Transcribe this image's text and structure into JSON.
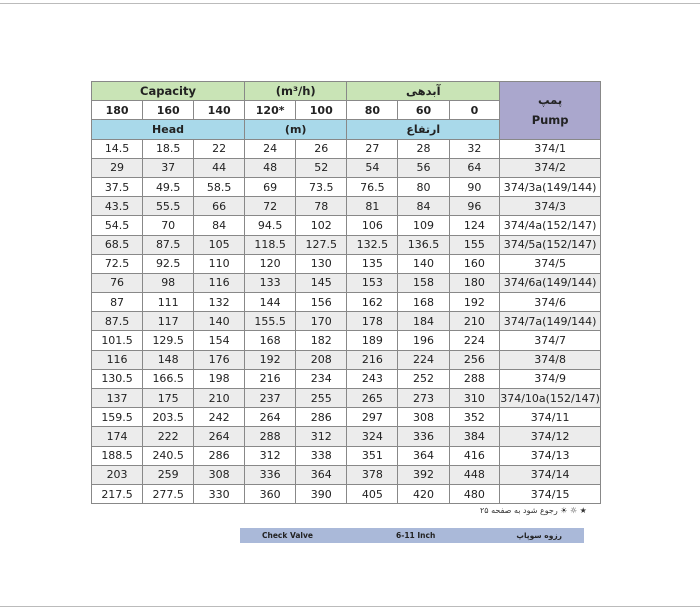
{
  "header": {
    "capacity": "Capacity",
    "unit_flow": "(m³/h)",
    "capacity_fa": "آبدهی",
    "pump_fa": "پمپ",
    "pump": "Pump",
    "head": "Head",
    "unit_head": "(m)",
    "head_fa": "ارتفاع"
  },
  "flows": [
    "180",
    "160",
    "140",
    "120*",
    "100",
    "80",
    "60",
    "0"
  ],
  "rows": [
    [
      "14.5",
      "18.5",
      "22",
      "24",
      "26",
      "27",
      "28",
      "32",
      "374/1"
    ],
    [
      "29",
      "37",
      "44",
      "48",
      "52",
      "54",
      "56",
      "64",
      "374/2"
    ],
    [
      "37.5",
      "49.5",
      "58.5",
      "69",
      "73.5",
      "76.5",
      "80",
      "90",
      "374/3a(149/144)"
    ],
    [
      "43.5",
      "55.5",
      "66",
      "72",
      "78",
      "81",
      "84",
      "96",
      "374/3"
    ],
    [
      "54.5",
      "70",
      "84",
      "94.5",
      "102",
      "106",
      "109",
      "124",
      "374/4a(152/147)"
    ],
    [
      "68.5",
      "87.5",
      "105",
      "118.5",
      "127.5",
      "132.5",
      "136.5",
      "155",
      "374/5a(152/147)"
    ],
    [
      "72.5",
      "92.5",
      "110",
      "120",
      "130",
      "135",
      "140",
      "160",
      "374/5"
    ],
    [
      "76",
      "98",
      "116",
      "133",
      "145",
      "153",
      "158",
      "180",
      "374/6a(149/144)"
    ],
    [
      "87",
      "111",
      "132",
      "144",
      "156",
      "162",
      "168",
      "192",
      "374/6"
    ],
    [
      "87.5",
      "117",
      "140",
      "155.5",
      "170",
      "178",
      "184",
      "210",
      "374/7a(149/144)"
    ],
    [
      "101.5",
      "129.5",
      "154",
      "168",
      "182",
      "189",
      "196",
      "224",
      "374/7"
    ],
    [
      "116",
      "148",
      "176",
      "192",
      "208",
      "216",
      "224",
      "256",
      "374/8"
    ],
    [
      "130.5",
      "166.5",
      "198",
      "216",
      "234",
      "243",
      "252",
      "288",
      "374/9"
    ],
    [
      "137",
      "175",
      "210",
      "237",
      "255",
      "265",
      "273",
      "310",
      "374/10a(152/147)"
    ],
    [
      "159.5",
      "203.5",
      "242",
      "264",
      "286",
      "297",
      "308",
      "352",
      "374/11"
    ],
    [
      "174",
      "222",
      "264",
      "288",
      "312",
      "324",
      "336",
      "384",
      "374/12"
    ],
    [
      "188.5",
      "240.5",
      "286",
      "312",
      "338",
      "351",
      "364",
      "416",
      "374/13"
    ],
    [
      "203",
      "259",
      "308",
      "336",
      "364",
      "378",
      "392",
      "448",
      "374/14"
    ],
    [
      "217.5",
      "277.5",
      "330",
      "360",
      "390",
      "405",
      "420",
      "480",
      "374/15"
    ]
  ],
  "note": "★ ☼ ☀ رجوع شود به صفحه ۲۵",
  "footer": {
    "label_en": "Check Valve",
    "size": "6-11 Inch",
    "label_fa": "رزوه سوپاپ"
  }
}
